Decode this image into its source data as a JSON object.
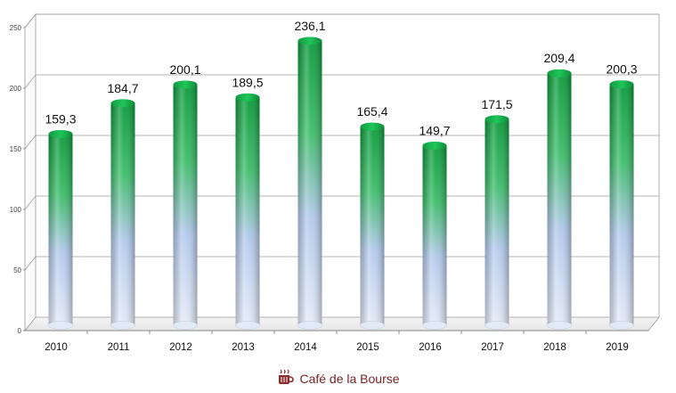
{
  "chart_data": {
    "type": "bar",
    "categories": [
      "2010",
      "2011",
      "2012",
      "2013",
      "2014",
      "2015",
      "2016",
      "2017",
      "2018",
      "2019"
    ],
    "values": [
      159.3,
      184.7,
      200.1,
      189.5,
      236.1,
      165.4,
      149.7,
      171.5,
      209.4,
      200.3
    ],
    "data_labels": [
      "159,3",
      "184,7",
      "200,1",
      "189,5",
      "236,1",
      "165,4",
      "149,7",
      "171,5",
      "209,4",
      "200,3"
    ],
    "y_ticks": [
      "0",
      "50",
      "100",
      "150",
      "200",
      "250"
    ],
    "ylim": [
      0,
      250
    ],
    "grid": true,
    "bar_colors": {
      "top": "#11a843",
      "bottom": "#c9d6ee"
    }
  },
  "footer": {
    "brand": "Café de la Bourse",
    "icon": "coffee-cup-icon",
    "color": "#8b2b2b"
  }
}
